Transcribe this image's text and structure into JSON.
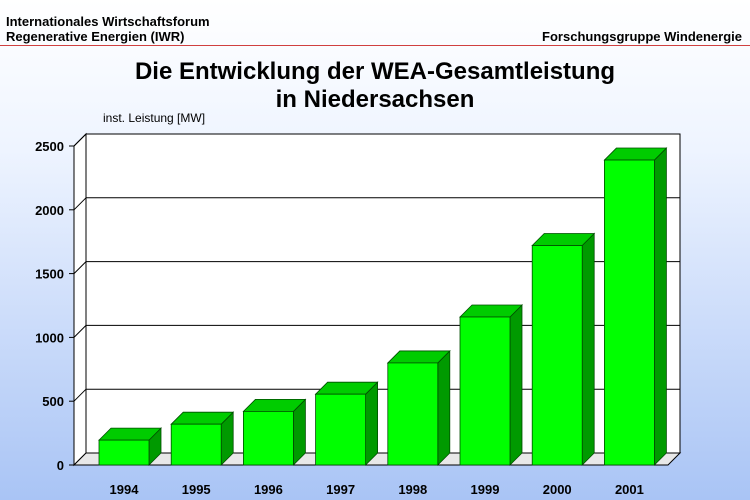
{
  "header": {
    "org_line1": "Internationales Wirtschaftsforum",
    "org_line2": "Regenerative Energien (IWR)",
    "group": "Forschungsgruppe Windenergie"
  },
  "chart_data": {
    "type": "bar",
    "title_line1": "Die Entwicklung der WEA-Gesamtleistung",
    "title_line2": "in Niedersachsen",
    "ylabel": "inst. Leistung [MW]",
    "xlabel": "",
    "categories": [
      "1994",
      "1995",
      "1996",
      "1997",
      "1998",
      "1999",
      "2000",
      "2001"
    ],
    "values": [
      195,
      320,
      420,
      555,
      800,
      1160,
      1720,
      2390
    ],
    "ylim": [
      0,
      2500
    ],
    "yticks": [
      0,
      500,
      1000,
      1500,
      2000,
      2500
    ],
    "grid": true,
    "bar_color": "#00ff00",
    "bar_side_color": "#009a00",
    "bar_top_color": "#00cc00"
  }
}
